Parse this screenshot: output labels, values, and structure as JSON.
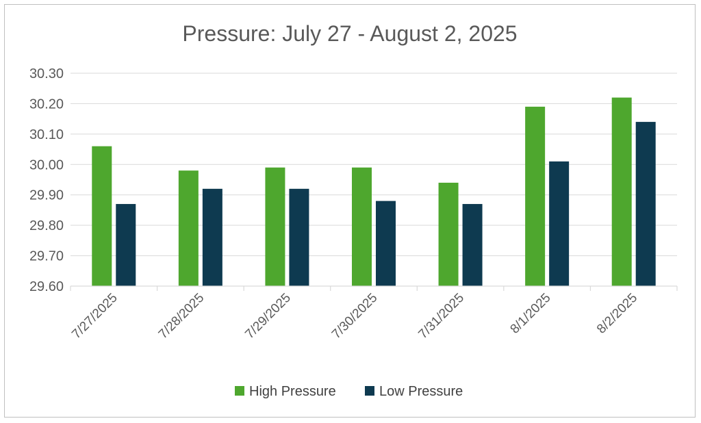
{
  "chart_data": {
    "type": "bar",
    "title": "Pressure:  July 27 - August 2, 2025",
    "categories": [
      "7/27/2025",
      "7/28/2025",
      "7/29/2025",
      "7/30/2025",
      "7/31/2025",
      "8/1/2025",
      "8/2/2025"
    ],
    "series": [
      {
        "name": "High Pressure",
        "color": "#4ea72e",
        "values": [
          30.06,
          29.98,
          29.99,
          29.99,
          29.94,
          30.19,
          30.22
        ]
      },
      {
        "name": "Low Pressure",
        "color": "#0e3a50",
        "values": [
          29.87,
          29.92,
          29.92,
          29.88,
          29.87,
          30.01,
          30.14
        ]
      }
    ],
    "ylim": [
      29.6,
      30.3
    ],
    "yticks": [
      "29.60",
      "29.70",
      "29.80",
      "29.90",
      "30.00",
      "30.10",
      "30.20",
      "30.30"
    ],
    "grid": true,
    "legend": "bottom",
    "gridColor": "#d9d9d9"
  }
}
